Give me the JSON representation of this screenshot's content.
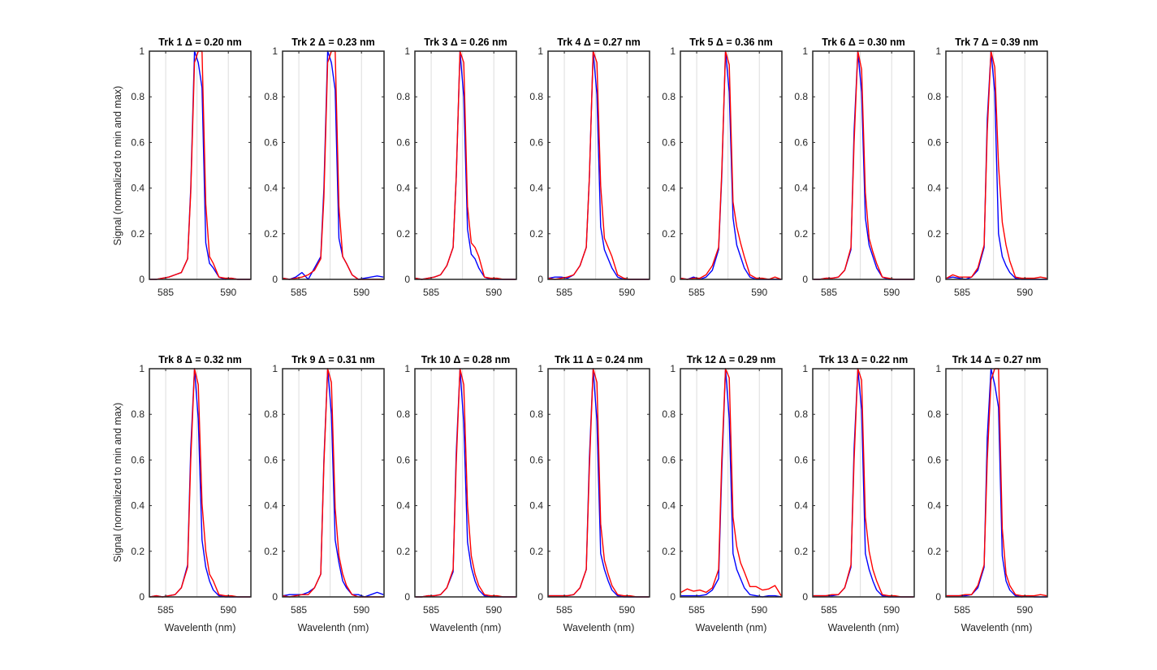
{
  "figure": {
    "ylabel": "Signal (normalized to min and max)",
    "xlabel": "Wavelenth (nm)"
  },
  "chart_data": {
    "type": "line",
    "layout": "2 rows x 7 columns of subplots",
    "xlim": [
      583.7,
      591.8
    ],
    "ylim": [
      0,
      1
    ],
    "xticks": [
      585,
      590
    ],
    "yticks": [
      0,
      0.2,
      0.4,
      0.6,
      0.8,
      1
    ],
    "grid": "vertical gridlines at 585, 587.5, 590",
    "series_colors": [
      "#0000ff",
      "#ff0000"
    ],
    "x": [
      583.75,
      584.25,
      584.75,
      585.25,
      585.75,
      586.25,
      586.75,
      587.0,
      587.3,
      587.6,
      587.9,
      588.2,
      588.5,
      588.8,
      589.25,
      589.75,
      590.25,
      590.75,
      591.25,
      591.75
    ],
    "panels": [
      {
        "title": "Trk 1 Δ = 0.20 nm",
        "series": [
          {
            "name": "blue",
            "values": [
              0.0,
              0.0,
              0.005,
              0.01,
              0.02,
              0.03,
              0.09,
              0.4,
              1.0,
              0.95,
              0.84,
              0.16,
              0.07,
              0.05,
              0.01,
              0.0,
              0.005,
              0.0,
              0.0,
              0.0
            ]
          },
          {
            "name": "red",
            "values": [
              0.0,
              0.0,
              0.005,
              0.01,
              0.02,
              0.03,
              0.09,
              0.38,
              0.95,
              1.0,
              1.0,
              0.33,
              0.1,
              0.07,
              0.01,
              0.005,
              0.005,
              0.0,
              0.0,
              0.0
            ]
          }
        ]
      },
      {
        "title": "Trk 2 Δ = 0.23 nm",
        "series": [
          {
            "name": "blue",
            "values": [
              0.005,
              0.0,
              0.01,
              0.03,
              0.0,
              0.05,
              0.1,
              0.4,
              1.0,
              0.95,
              0.83,
              0.18,
              0.1,
              0.07,
              0.02,
              0.0,
              0.005,
              0.01,
              0.015,
              0.01
            ]
          },
          {
            "name": "red",
            "values": [
              0.005,
              0.0,
              0.005,
              0.01,
              0.02,
              0.04,
              0.09,
              0.36,
              0.95,
              1.0,
              1.0,
              0.32,
              0.1,
              0.07,
              0.02,
              0.0,
              0.0,
              0.0,
              0.0,
              0.0
            ]
          }
        ]
      },
      {
        "title": "Trk 3 Δ = 0.26 nm",
        "series": [
          {
            "name": "blue",
            "values": [
              0.005,
              0.0,
              0.005,
              0.01,
              0.02,
              0.06,
              0.14,
              0.45,
              1.0,
              0.8,
              0.22,
              0.11,
              0.09,
              0.05,
              0.01,
              0.0,
              0.0,
              0.0,
              0.0,
              0.0
            ]
          },
          {
            "name": "red",
            "values": [
              0.005,
              0.0,
              0.005,
              0.01,
              0.02,
              0.06,
              0.14,
              0.45,
              1.0,
              0.95,
              0.32,
              0.16,
              0.14,
              0.1,
              0.01,
              0.005,
              0.005,
              0.0,
              0.0,
              0.0
            ]
          }
        ]
      },
      {
        "title": "Trk 4 Δ = 0.27 nm",
        "series": [
          {
            "name": "blue",
            "values": [
              0.005,
              0.01,
              0.01,
              0.005,
              0.02,
              0.06,
              0.14,
              0.45,
              1.0,
              0.81,
              0.23,
              0.13,
              0.09,
              0.05,
              0.01,
              0.0,
              0.0,
              0.0,
              0.0,
              0.0
            ]
          },
          {
            "name": "red",
            "values": [
              0.005,
              0.0,
              0.005,
              0.01,
              0.02,
              0.06,
              0.14,
              0.45,
              1.0,
              0.95,
              0.41,
              0.18,
              0.14,
              0.1,
              0.02,
              0.005,
              0.0,
              0.0,
              0.0,
              0.0
            ]
          }
        ]
      },
      {
        "title": "Trk 5 Δ = 0.36 nm",
        "series": [
          {
            "name": "blue",
            "values": [
              0.005,
              0.0,
              0.01,
              0.0,
              0.01,
              0.04,
              0.13,
              0.45,
              1.0,
              0.82,
              0.27,
              0.15,
              0.1,
              0.05,
              0.01,
              0.0,
              0.0,
              0.0,
              0.0,
              0.0
            ]
          },
          {
            "name": "red",
            "values": [
              0.005,
              0.0,
              0.005,
              0.005,
              0.02,
              0.06,
              0.14,
              0.47,
              1.0,
              0.94,
              0.34,
              0.23,
              0.16,
              0.1,
              0.02,
              0.005,
              0.005,
              0.0,
              0.01,
              0.0
            ]
          }
        ]
      },
      {
        "title": "Trk 6 Δ = 0.30 nm",
        "series": [
          {
            "name": "blue",
            "values": [
              0.0,
              0.0,
              0.005,
              0.005,
              0.01,
              0.04,
              0.13,
              0.65,
              1.0,
              0.82,
              0.27,
              0.15,
              0.1,
              0.05,
              0.01,
              0.0,
              0.0,
              0.0,
              0.0,
              0.0
            ]
          },
          {
            "name": "red",
            "values": [
              0.0,
              0.0,
              0.005,
              0.005,
              0.01,
              0.04,
              0.14,
              0.6,
              1.0,
              0.92,
              0.38,
              0.18,
              0.12,
              0.07,
              0.01,
              0.005,
              0.0,
              0.0,
              0.0,
              0.0
            ]
          }
        ]
      },
      {
        "title": "Trk 7 Δ = 0.39 nm",
        "series": [
          {
            "name": "blue",
            "values": [
              0.005,
              0.01,
              0.005,
              0.0,
              0.01,
              0.04,
              0.14,
              0.7,
              1.0,
              0.82,
              0.2,
              0.1,
              0.06,
              0.03,
              0.005,
              0.0,
              0.0,
              0.0,
              0.0,
              0.0
            ]
          },
          {
            "name": "red",
            "values": [
              0.005,
              0.02,
              0.01,
              0.01,
              0.01,
              0.05,
              0.15,
              0.65,
              1.0,
              0.93,
              0.5,
              0.25,
              0.15,
              0.08,
              0.01,
              0.005,
              0.005,
              0.005,
              0.01,
              0.005
            ]
          }
        ]
      },
      {
        "title": "Trk 8 Δ = 0.32 nm",
        "series": [
          {
            "name": "blue",
            "values": [
              0.0,
              0.005,
              0.0,
              0.005,
              0.01,
              0.04,
              0.14,
              0.65,
              1.0,
              0.78,
              0.25,
              0.13,
              0.07,
              0.03,
              0.005,
              0.0,
              0.0,
              0.0,
              0.0,
              0.0
            ]
          },
          {
            "name": "red",
            "values": [
              0.0,
              0.005,
              0.0,
              0.005,
              0.01,
              0.04,
              0.13,
              0.6,
              1.0,
              0.93,
              0.41,
              0.2,
              0.1,
              0.07,
              0.01,
              0.005,
              0.005,
              0.0,
              0.0,
              0.0
            ]
          }
        ]
      },
      {
        "title": "Trk 9 Δ = 0.31 nm",
        "series": [
          {
            "name": "blue",
            "values": [
              0.005,
              0.01,
              0.01,
              0.01,
              0.02,
              0.04,
              0.1,
              0.6,
              1.0,
              0.8,
              0.25,
              0.15,
              0.07,
              0.04,
              0.01,
              0.01,
              0.0,
              0.01,
              0.02,
              0.01
            ]
          },
          {
            "name": "red",
            "values": [
              0.005,
              0.0,
              0.005,
              0.01,
              0.01,
              0.04,
              0.1,
              0.58,
              1.0,
              0.94,
              0.39,
              0.18,
              0.1,
              0.05,
              0.01,
              0.0,
              0.0,
              0.0,
              0.0,
              0.0
            ]
          }
        ]
      },
      {
        "title": "Trk 10 Δ = 0.28 nm",
        "series": [
          {
            "name": "blue",
            "values": [
              0.0,
              0.0,
              0.005,
              0.005,
              0.01,
              0.04,
              0.11,
              0.63,
              1.0,
              0.76,
              0.24,
              0.13,
              0.07,
              0.03,
              0.005,
              0.0,
              0.0,
              0.0,
              0.0,
              0.0
            ]
          },
          {
            "name": "red",
            "values": [
              0.0,
              0.0,
              0.005,
              0.005,
              0.01,
              0.04,
              0.12,
              0.59,
              1.0,
              0.93,
              0.4,
              0.18,
              0.1,
              0.05,
              0.01,
              0.005,
              0.005,
              0.0,
              0.0,
              0.0
            ]
          }
        ]
      },
      {
        "title": "Trk 11 Δ = 0.24 nm",
        "series": [
          {
            "name": "blue",
            "values": [
              0.005,
              0.005,
              0.005,
              0.005,
              0.01,
              0.04,
              0.12,
              0.61,
              1.0,
              0.77,
              0.19,
              0.12,
              0.07,
              0.03,
              0.005,
              0.0,
              0.0,
              0.0,
              0.0,
              0.0
            ]
          },
          {
            "name": "red",
            "values": [
              0.005,
              0.005,
              0.005,
              0.005,
              0.01,
              0.04,
              0.12,
              0.57,
              1.0,
              0.94,
              0.32,
              0.16,
              0.1,
              0.05,
              0.01,
              0.005,
              0.005,
              0.0,
              0.0,
              0.0
            ]
          }
        ]
      },
      {
        "title": "Trk 12 Δ = 0.29 nm",
        "series": [
          {
            "name": "blue",
            "values": [
              0.005,
              0.005,
              0.005,
              0.005,
              0.01,
              0.03,
              0.08,
              0.55,
              1.0,
              0.78,
              0.19,
              0.12,
              0.08,
              0.04,
              0.01,
              0.005,
              0.0,
              0.005,
              0.005,
              0.0
            ]
          },
          {
            "name": "red",
            "values": [
              0.02,
              0.035,
              0.025,
              0.03,
              0.02,
              0.04,
              0.12,
              0.6,
              1.0,
              0.96,
              0.35,
              0.22,
              0.15,
              0.11,
              0.045,
              0.045,
              0.03,
              0.035,
              0.05,
              0.005
            ]
          }
        ]
      },
      {
        "title": "Trk 13 Δ = 0.22 nm",
        "series": [
          {
            "name": "blue",
            "values": [
              0.005,
              0.005,
              0.005,
              0.005,
              0.01,
              0.04,
              0.13,
              0.65,
              1.0,
              0.82,
              0.19,
              0.12,
              0.07,
              0.03,
              0.005,
              0.0,
              0.0,
              0.0,
              0.0,
              0.0
            ]
          },
          {
            "name": "red",
            "values": [
              0.005,
              0.005,
              0.005,
              0.01,
              0.01,
              0.04,
              0.14,
              0.6,
              1.0,
              0.95,
              0.35,
              0.2,
              0.12,
              0.07,
              0.01,
              0.005,
              0.005,
              0.0,
              0.0,
              0.0
            ]
          }
        ]
      },
      {
        "title": "Trk 14 Δ = 0.27 nm",
        "series": [
          {
            "name": "blue",
            "values": [
              0.005,
              0.005,
              0.005,
              0.005,
              0.01,
              0.04,
              0.13,
              0.7,
              1.0,
              0.93,
              0.83,
              0.18,
              0.07,
              0.03,
              0.005,
              0.0,
              0.005,
              0.0,
              0.0,
              0.0
            ]
          },
          {
            "name": "red",
            "values": [
              0.005,
              0.005,
              0.005,
              0.01,
              0.01,
              0.05,
              0.14,
              0.6,
              0.95,
              1.0,
              1.0,
              0.3,
              0.1,
              0.05,
              0.01,
              0.005,
              0.005,
              0.005,
              0.01,
              0.005
            ]
          }
        ]
      }
    ]
  }
}
